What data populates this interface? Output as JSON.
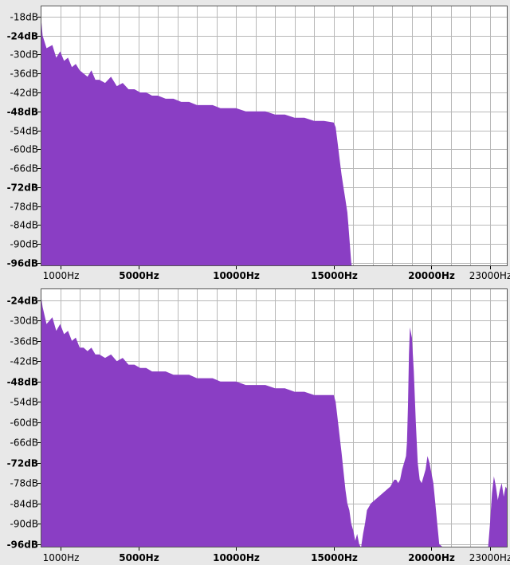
{
  "chart_data": [
    {
      "type": "area",
      "fill_color": "#8a3ec4",
      "xlim": [
        0,
        23900
      ],
      "ylim": [
        -97,
        -14.5
      ],
      "x_ticks": [
        {
          "value": 1000,
          "label": "1000Hz",
          "bold": false
        },
        {
          "value": 5000,
          "label": "5000Hz",
          "bold": true
        },
        {
          "value": 10000,
          "label": "10000Hz",
          "bold": true
        },
        {
          "value": 15000,
          "label": "15000Hz",
          "bold": true
        },
        {
          "value": 20000,
          "label": "20000Hz",
          "bold": true
        },
        {
          "value": 23000,
          "label": "23000Hz",
          "bold": false
        }
      ],
      "y_ticks": [
        {
          "value": -18,
          "label": "-18dB",
          "bold": false
        },
        {
          "value": -24,
          "label": "-24dB",
          "bold": true
        },
        {
          "value": -30,
          "label": "-30dB",
          "bold": false
        },
        {
          "value": -36,
          "label": "-36dB",
          "bold": false
        },
        {
          "value": -42,
          "label": "-42dB",
          "bold": false
        },
        {
          "value": -48,
          "label": "-48dB",
          "bold": true
        },
        {
          "value": -54,
          "label": "-54dB",
          "bold": false
        },
        {
          "value": -60,
          "label": "-60dB",
          "bold": false
        },
        {
          "value": -66,
          "label": "-66dB",
          "bold": false
        },
        {
          "value": -72,
          "label": "-72dB",
          "bold": true
        },
        {
          "value": -78,
          "label": "-78dB",
          "bold": false
        },
        {
          "value": -84,
          "label": "-84dB",
          "bold": false
        },
        {
          "value": -90,
          "label": "-90dB",
          "bold": false
        },
        {
          "value": -96,
          "label": "-96dB",
          "bold": true
        }
      ],
      "grid_x_step": 1000,
      "grid": true,
      "series": [
        {
          "x": [
            0,
            100,
            300,
            600,
            800,
            1000,
            1200,
            1400,
            1600,
            1800,
            2000,
            2200,
            2400,
            2600,
            2800,
            3000,
            3300,
            3600,
            3900,
            4200,
            4500,
            4800,
            5100,
            5400,
            5700,
            6000,
            6400,
            6800,
            7200,
            7600,
            8000,
            8400,
            8800,
            9200,
            9600,
            10000,
            10500,
            11000,
            11500,
            12000,
            12500,
            13000,
            13500,
            14000,
            14500,
            15000,
            15100,
            15200,
            15300,
            15400,
            15500,
            15600,
            15700,
            15750,
            15800,
            15850,
            15900,
            15930
          ],
          "y": [
            -17,
            -24,
            -28,
            -27,
            -31,
            -29,
            -32,
            -31,
            -34,
            -33,
            -35,
            -36,
            -37,
            -35,
            -38,
            -38,
            -39,
            -37,
            -40,
            -39,
            -41,
            -41,
            -42,
            -42,
            -43,
            -43,
            -44,
            -44,
            -45,
            -45,
            -46,
            -46,
            -46,
            -47,
            -47,
            -47,
            -48,
            -48,
            -48,
            -49,
            -49,
            -50,
            -50,
            -51,
            -51,
            -51.5,
            -53,
            -58,
            -63,
            -68,
            -72,
            -76,
            -80,
            -84,
            -88,
            -92,
            -96,
            -97
          ]
        }
      ]
    },
    {
      "type": "area",
      "fill_color": "#8a3ec4",
      "xlim": [
        0,
        23900
      ],
      "ylim": [
        -97,
        -20.5
      ],
      "x_ticks": [
        {
          "value": 1000,
          "label": "1000Hz",
          "bold": false
        },
        {
          "value": 5000,
          "label": "5000Hz",
          "bold": true
        },
        {
          "value": 10000,
          "label": "10000Hz",
          "bold": true
        },
        {
          "value": 15000,
          "label": "15000Hz",
          "bold": true
        },
        {
          "value": 20000,
          "label": "20000Hz",
          "bold": true
        },
        {
          "value": 23000,
          "label": "23000Hz",
          "bold": false
        }
      ],
      "y_ticks": [
        {
          "value": -24,
          "label": "-24dB",
          "bold": true
        },
        {
          "value": -30,
          "label": "-30dB",
          "bold": false
        },
        {
          "value": -36,
          "label": "-36dB",
          "bold": false
        },
        {
          "value": -42,
          "label": "-42dB",
          "bold": false
        },
        {
          "value": -48,
          "label": "-48dB",
          "bold": true
        },
        {
          "value": -54,
          "label": "-54dB",
          "bold": false
        },
        {
          "value": -60,
          "label": "-60dB",
          "bold": false
        },
        {
          "value": -66,
          "label": "-66dB",
          "bold": false
        },
        {
          "value": -72,
          "label": "-72dB",
          "bold": true
        },
        {
          "value": -78,
          "label": "-78dB",
          "bold": false
        },
        {
          "value": -84,
          "label": "-84dB",
          "bold": false
        },
        {
          "value": -90,
          "label": "-90dB",
          "bold": false
        },
        {
          "value": -96,
          "label": "-96dB",
          "bold": true
        }
      ],
      "grid_x_step": 1000,
      "grid": true,
      "series": [
        {
          "x": [
            0,
            100,
            300,
            600,
            800,
            1000,
            1200,
            1400,
            1600,
            1800,
            2000,
            2200,
            2400,
            2600,
            2800,
            3000,
            3300,
            3600,
            3900,
            4200,
            4500,
            4800,
            5100,
            5400,
            5700,
            6000,
            6400,
            6800,
            7200,
            7600,
            8000,
            8400,
            8800,
            9200,
            9600,
            10000,
            10500,
            11000,
            11500,
            12000,
            12500,
            13000,
            13500,
            14000,
            14500,
            15000,
            15100,
            15200,
            15400,
            15600,
            15700,
            15800,
            15900,
            16000,
            16100,
            16200,
            16300,
            16400,
            16500,
            16600,
            16700,
            16900,
            17100,
            17300,
            17500,
            17700,
            17900,
            18000,
            18100,
            18200,
            18300,
            18400,
            18500,
            18600,
            18700,
            18750,
            18800,
            18850,
            18900,
            19000,
            19100,
            19200,
            19300,
            19400,
            19500,
            19600,
            19700,
            19800,
            19900,
            20000,
            20100,
            20200,
            20300,
            20400,
            20600,
            21000,
            22000,
            22500,
            22800,
            22900,
            23000,
            23100,
            23200,
            23300,
            23400,
            23500,
            23600,
            23700,
            23800,
            23900
          ],
          "y": [
            -22,
            -26,
            -31,
            -29,
            -33,
            -31,
            -34,
            -33,
            -36,
            -35,
            -38,
            -38,
            -39,
            -38,
            -40,
            -40,
            -41,
            -40,
            -42,
            -41,
            -43,
            -43,
            -44,
            -44,
            -45,
            -45,
            -45,
            -46,
            -46,
            -46,
            -47,
            -47,
            -47,
            -48,
            -48,
            -48,
            -49,
            -49,
            -49,
            -50,
            -50,
            -51,
            -51,
            -52,
            -52,
            -52,
            -54,
            -59,
            -69,
            -80,
            -84,
            -86,
            -90,
            -92,
            -95,
            -93,
            -96,
            -97,
            -93,
            -90,
            -86,
            -84,
            -83,
            -82,
            -81,
            -80,
            -79,
            -78,
            -77,
            -77,
            -78,
            -77,
            -74,
            -72,
            -70,
            -66,
            -55,
            -40,
            -32,
            -35,
            -45,
            -60,
            -72,
            -77,
            -78,
            -76,
            -74,
            -70,
            -72,
            -75,
            -78,
            -84,
            -90,
            -96,
            -97,
            -97,
            -97,
            -97,
            -97,
            -97,
            -90,
            -81,
            -76,
            -79,
            -83,
            -80,
            -78,
            -82,
            -79,
            -80
          ]
        }
      ]
    }
  ]
}
